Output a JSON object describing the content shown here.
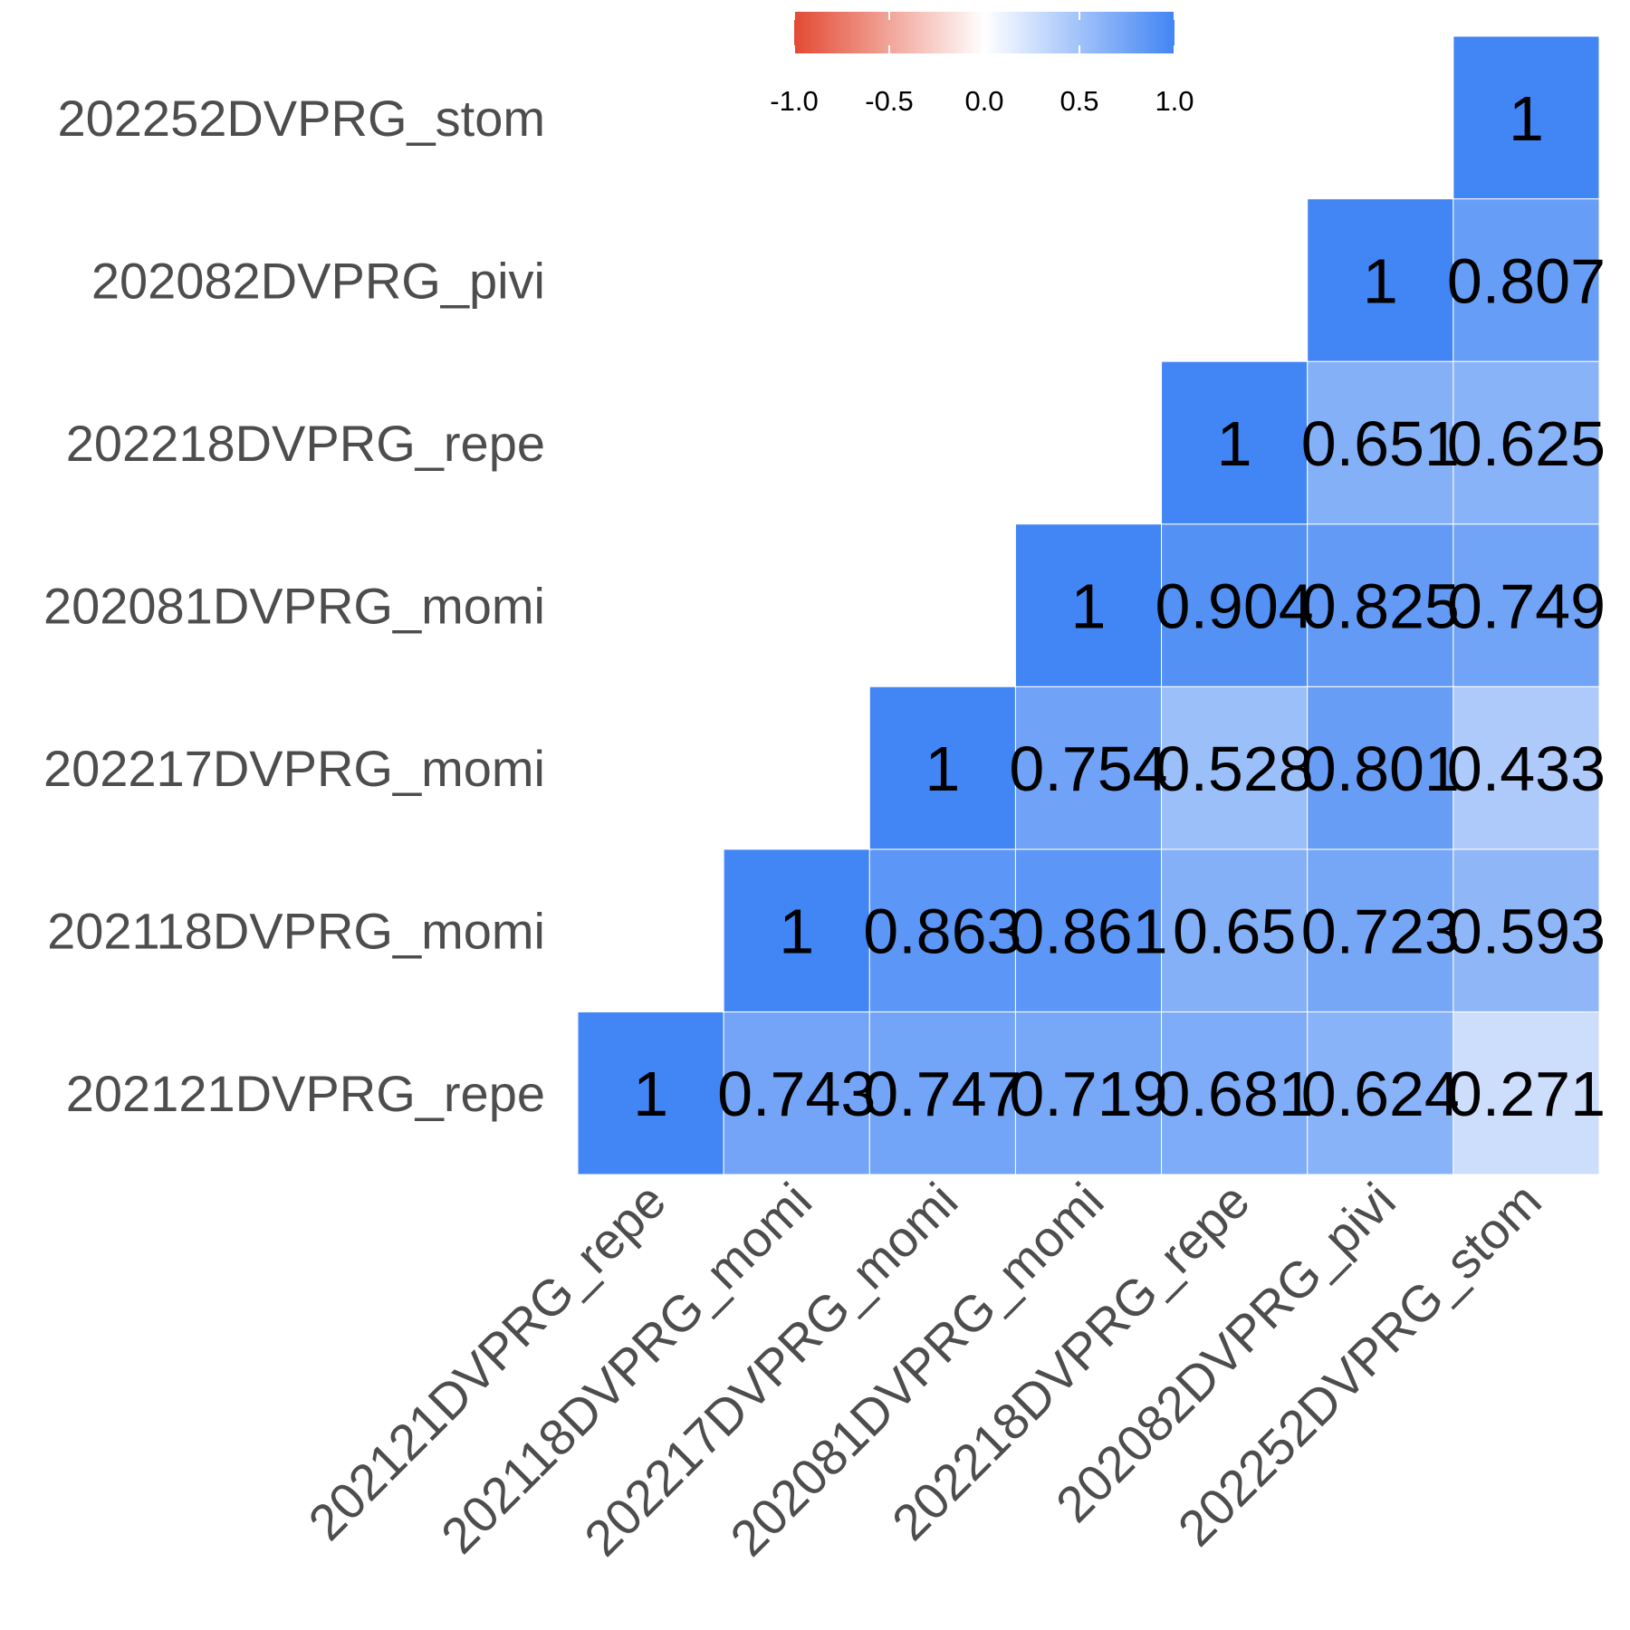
{
  "chart_data": {
    "type": "heatmap",
    "variables": [
      "202121DVPRG_repe",
      "202118DVPRG_momi",
      "202217DVPRG_momi",
      "202081DVPRG_momi",
      "202218DVPRG_repe",
      "202082DVPRG_pivi",
      "202252DVPRG_stom"
    ],
    "matrix": [
      [
        1,
        0.743,
        0.747,
        0.719,
        0.681,
        0.624,
        0.271
      ],
      [
        null,
        1,
        0.863,
        0.861,
        0.65,
        0.723,
        0.593
      ],
      [
        null,
        null,
        1,
        0.754,
        0.528,
        0.801,
        0.433
      ],
      [
        null,
        null,
        null,
        1,
        0.904,
        0.825,
        0.749
      ],
      [
        null,
        null,
        null,
        null,
        1,
        0.651,
        0.625
      ],
      [
        null,
        null,
        null,
        null,
        null,
        1,
        0.807
      ],
      [
        null,
        null,
        null,
        null,
        null,
        null,
        1
      ]
    ],
    "cell_labels": [
      [
        "1",
        "0.743",
        "0.747",
        "0.719",
        "0.681",
        "0.624",
        "0.271"
      ],
      [
        null,
        "1",
        "0.863",
        "0.861",
        "0.65",
        "0.723",
        "0.593"
      ],
      [
        null,
        null,
        "1",
        "0.754",
        "0.528",
        "0.801",
        "0.433"
      ],
      [
        null,
        null,
        null,
        "1",
        "0.904",
        "0.825",
        "0.749"
      ],
      [
        null,
        null,
        null,
        null,
        "1",
        "0.651",
        "0.625"
      ],
      [
        null,
        null,
        null,
        null,
        null,
        "1",
        "0.807"
      ],
      [
        null,
        null,
        null,
        null,
        null,
        null,
        "1"
      ]
    ],
    "legend": {
      "placement": "top",
      "range": [
        -1,
        1
      ],
      "ticks": [
        -1,
        -0.5,
        0,
        0.5,
        1
      ],
      "tick_labels": [
        "-1.0",
        "-0.5",
        "0.0",
        "0.5",
        "1.0"
      ]
    },
    "colors": {
      "low": "#e34a33",
      "mid": "#ffffff",
      "high": "#4285f4"
    }
  }
}
